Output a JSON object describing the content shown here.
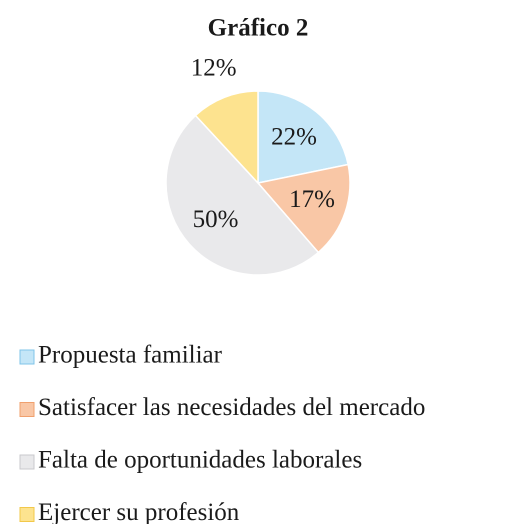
{
  "chart_data": {
    "type": "pie",
    "title": "Gráfico 2",
    "categories": [
      "Propuesta familiar",
      "Satisfacer las necesidades del mercado",
      "Falta de oportunidades laborales",
      "Ejercer su profesión"
    ],
    "values": [
      22,
      17,
      50,
      12
    ],
    "value_labels": [
      "22%",
      "17%",
      "50%",
      "12%"
    ],
    "colors": [
      "#c4e6f7",
      "#f9c7a6",
      "#e9e9eb",
      "#fde38f"
    ],
    "legend": "bottom"
  }
}
